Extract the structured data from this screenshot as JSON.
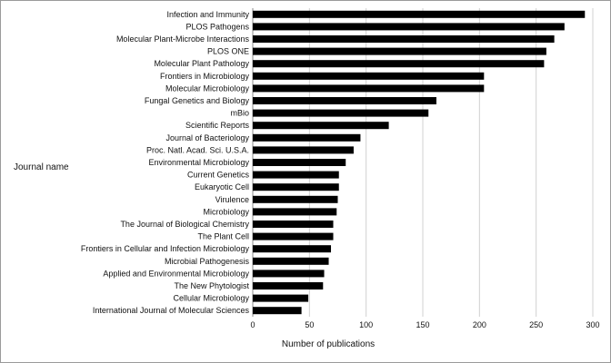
{
  "chart_data": {
    "type": "bar",
    "orientation": "horizontal",
    "xlabel": "Number of publications",
    "ylabel": "Journal name",
    "xlim": [
      0,
      300
    ],
    "xticks": [
      0,
      50,
      100,
      150,
      200,
      250,
      300
    ],
    "grid": "vertical",
    "legend": "none",
    "bar_color": "#000000",
    "grid_color": "#d0d0d0",
    "categories": [
      "Infection and Immunity",
      "PLOS Pathogens",
      "Molecular Plant-Microbe Interactions",
      "PLOS ONE",
      "Molecular Plant Pathology",
      "Frontiers in Microbiology",
      "Molecular Microbiology",
      "Fungal Genetics and Biology",
      "mBio",
      "Scientific Reports",
      "Journal of Bacteriology",
      "Proc. Natl. Acad. Sci. U.S.A.",
      "Environmental Microbiology",
      "Current Genetics",
      "Eukaryotic Cell",
      "Virulence",
      "Microbiology",
      "The Journal of Biological Chemistry",
      "The Plant Cell",
      "Frontiers in Cellular and Infection Microbiology",
      "Microbial Pathogenesis",
      "Applied and Environmental Microbiology",
      "The New Phytologist",
      "Cellular Microbiology",
      "International Journal of Molecular Sciences"
    ],
    "values": [
      293,
      275,
      266,
      259,
      257,
      204,
      204,
      162,
      155,
      120,
      95,
      89,
      82,
      76,
      76,
      75,
      74,
      71,
      71,
      69,
      67,
      63,
      62,
      49,
      43
    ]
  }
}
